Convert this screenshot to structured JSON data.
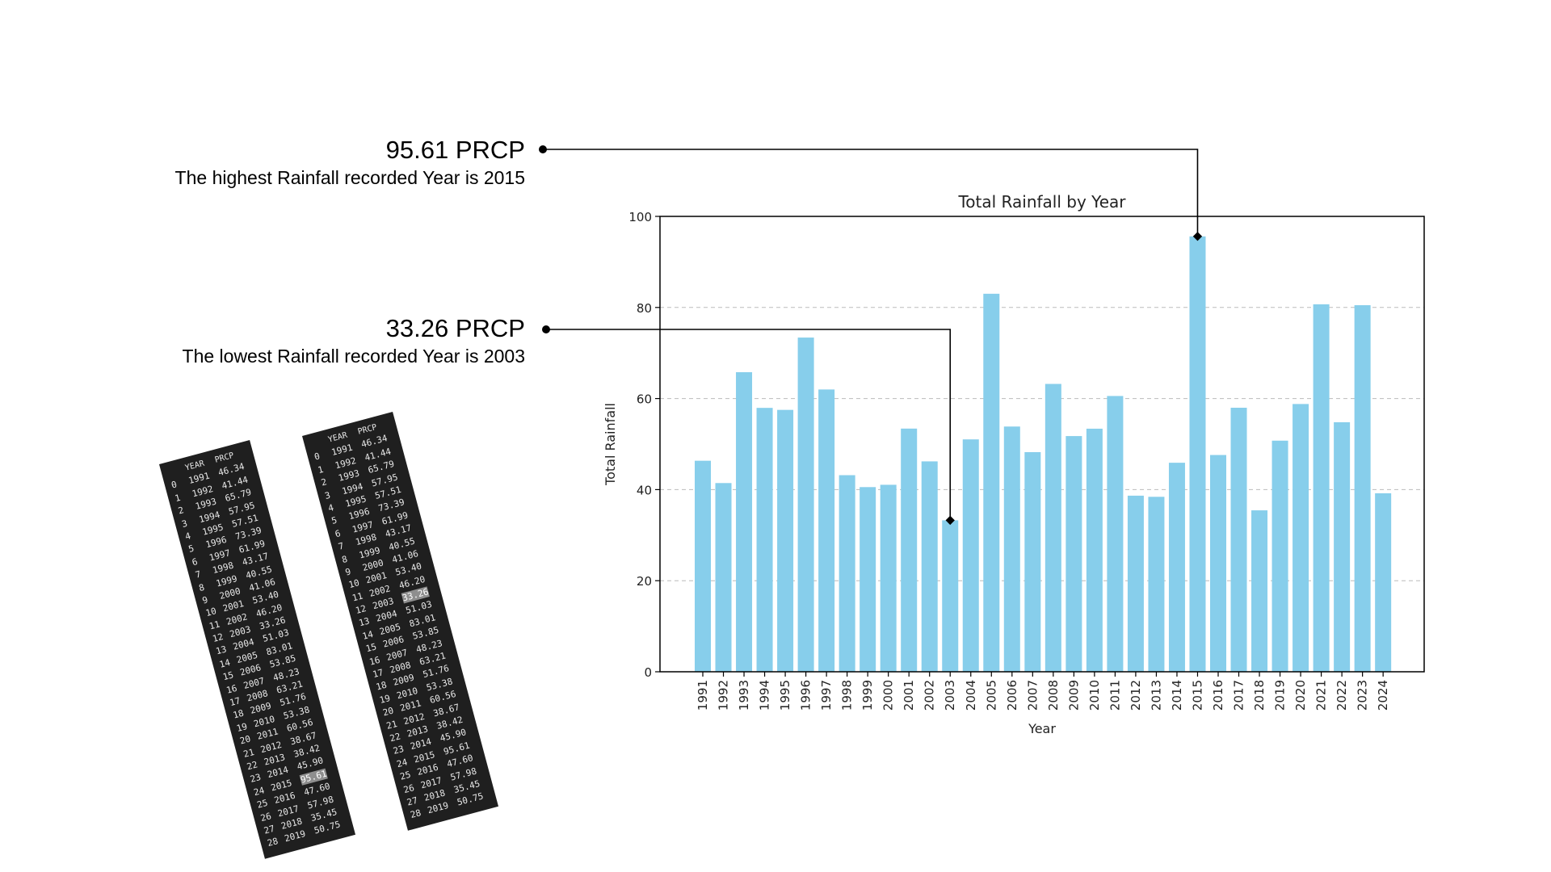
{
  "callouts": {
    "highest": {
      "value": "95.61 PRCP",
      "description": "The highest Rainfall recorded Year is 2015",
      "year": "2015"
    },
    "lowest": {
      "value": "33.26 PRCP",
      "description": "The lowest Rainfall recorded Year is 2003",
      "year": "2003"
    }
  },
  "tables": {
    "columns": [
      "YEAR",
      "PRCP"
    ],
    "left": {
      "highlight_value": "95.61",
      "rows": [
        [
          "0",
          "1991",
          "46.34"
        ],
        [
          "1",
          "1992",
          "41.44"
        ],
        [
          "2",
          "1993",
          "65.79"
        ],
        [
          "3",
          "1994",
          "57.95"
        ],
        [
          "4",
          "1995",
          "57.51"
        ],
        [
          "5",
          "1996",
          "73.39"
        ],
        [
          "6",
          "1997",
          "61.99"
        ],
        [
          "7",
          "1998",
          "43.17"
        ],
        [
          "8",
          "1999",
          "40.55"
        ],
        [
          "9",
          "2000",
          "41.06"
        ],
        [
          "10",
          "2001",
          "53.40"
        ],
        [
          "11",
          "2002",
          "46.20"
        ],
        [
          "12",
          "2003",
          "33.26"
        ],
        [
          "13",
          "2004",
          "51.03"
        ],
        [
          "14",
          "2005",
          "83.01"
        ],
        [
          "15",
          "2006",
          "53.85"
        ],
        [
          "16",
          "2007",
          "48.23"
        ],
        [
          "17",
          "2008",
          "63.21"
        ],
        [
          "18",
          "2009",
          "51.76"
        ],
        [
          "19",
          "2010",
          "53.38"
        ],
        [
          "20",
          "2011",
          "60.56"
        ],
        [
          "21",
          "2012",
          "38.67"
        ],
        [
          "22",
          "2013",
          "38.42"
        ],
        [
          "23",
          "2014",
          "45.90"
        ],
        [
          "24",
          "2015",
          "95.61"
        ],
        [
          "25",
          "2016",
          "47.60"
        ],
        [
          "26",
          "2017",
          "57.98"
        ],
        [
          "27",
          "2018",
          "35.45"
        ],
        [
          "28",
          "2019",
          "50.75"
        ]
      ]
    },
    "right": {
      "highlight_value": "33.26",
      "rows": [
        [
          "0",
          "1991",
          "46.34"
        ],
        [
          "1",
          "1992",
          "41.44"
        ],
        [
          "2",
          "1993",
          "65.79"
        ],
        [
          "3",
          "1994",
          "57.95"
        ],
        [
          "4",
          "1995",
          "57.51"
        ],
        [
          "5",
          "1996",
          "73.39"
        ],
        [
          "6",
          "1997",
          "61.99"
        ],
        [
          "7",
          "1998",
          "43.17"
        ],
        [
          "8",
          "1999",
          "40.55"
        ],
        [
          "9",
          "2000",
          "41.06"
        ],
        [
          "10",
          "2001",
          "53.40"
        ],
        [
          "11",
          "2002",
          "46.20"
        ],
        [
          "12",
          "2003",
          "33.26"
        ],
        [
          "13",
          "2004",
          "51.03"
        ],
        [
          "14",
          "2005",
          "83.01"
        ],
        [
          "15",
          "2006",
          "53.85"
        ],
        [
          "16",
          "2007",
          "48.23"
        ],
        [
          "17",
          "2008",
          "63.21"
        ],
        [
          "18",
          "2009",
          "51.76"
        ],
        [
          "19",
          "2010",
          "53.38"
        ],
        [
          "20",
          "2011",
          "60.56"
        ],
        [
          "21",
          "2012",
          "38.67"
        ],
        [
          "22",
          "2013",
          "38.42"
        ],
        [
          "23",
          "2014",
          "45.90"
        ],
        [
          "24",
          "2015",
          "95.61"
        ],
        [
          "25",
          "2016",
          "47.60"
        ],
        [
          "26",
          "2017",
          "57.98"
        ],
        [
          "27",
          "2018",
          "35.45"
        ],
        [
          "28",
          "2019",
          "50.75"
        ]
      ]
    }
  },
  "chart_data": {
    "type": "bar",
    "title": "Total Rainfall by Year",
    "xlabel": "Year",
    "ylabel": "Total Rainfall",
    "ylim": [
      0,
      100
    ],
    "yticks": [
      0,
      20,
      40,
      60,
      80,
      100
    ],
    "grid": "y-dashed",
    "bar_color": "#87ceeb",
    "categories": [
      "1991",
      "1992",
      "1993",
      "1994",
      "1995",
      "1996",
      "1997",
      "1998",
      "1999",
      "2000",
      "2001",
      "2002",
      "2003",
      "2004",
      "2005",
      "2006",
      "2007",
      "2008",
      "2009",
      "2010",
      "2011",
      "2012",
      "2013",
      "2014",
      "2015",
      "2016",
      "2017",
      "2018",
      "2019",
      "2020",
      "2021",
      "2022",
      "2023",
      "2024"
    ],
    "values": [
      46.34,
      41.44,
      65.79,
      57.95,
      57.51,
      73.39,
      61.99,
      43.17,
      40.55,
      41.06,
      53.4,
      46.2,
      33.26,
      51.03,
      83.01,
      53.85,
      48.23,
      63.21,
      51.76,
      53.38,
      60.56,
      38.67,
      38.42,
      45.9,
      95.61,
      47.6,
      57.98,
      35.45,
      50.75,
      58.8,
      80.7,
      54.8,
      80.5,
      39.2
    ]
  }
}
